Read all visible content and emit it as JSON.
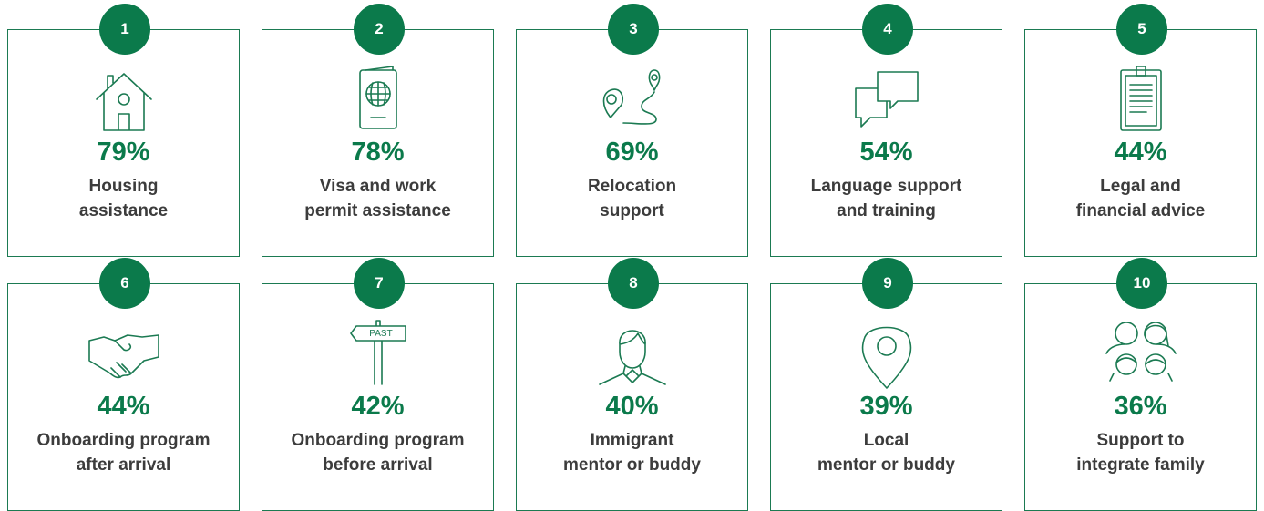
{
  "cards": [
    {
      "rank": "1",
      "percent": "79%",
      "label": [
        "Housing",
        "assistance"
      ]
    },
    {
      "rank": "2",
      "percent": "78%",
      "label": [
        "Visa and work",
        "permit assistance"
      ]
    },
    {
      "rank": "3",
      "percent": "69%",
      "label": [
        "Relocation",
        "support"
      ]
    },
    {
      "rank": "4",
      "percent": "54%",
      "label": [
        "Language support",
        "and training"
      ]
    },
    {
      "rank": "5",
      "percent": "44%",
      "label": [
        "Legal and",
        "financial advice"
      ]
    },
    {
      "rank": "6",
      "percent": "44%",
      "label": [
        "Onboarding program",
        "after arrival"
      ]
    },
    {
      "rank": "7",
      "percent": "42%",
      "label": [
        "Onboarding program",
        "before arrival"
      ],
      "icon_text": "PAST"
    },
    {
      "rank": "8",
      "percent": "40%",
      "label": [
        "Immigrant",
        "mentor or buddy"
      ]
    },
    {
      "rank": "9",
      "percent": "39%",
      "label": [
        "Local",
        "mentor or buddy"
      ]
    },
    {
      "rank": "10",
      "percent": "36%",
      "label": [
        "Support to",
        "integrate family"
      ]
    }
  ]
}
